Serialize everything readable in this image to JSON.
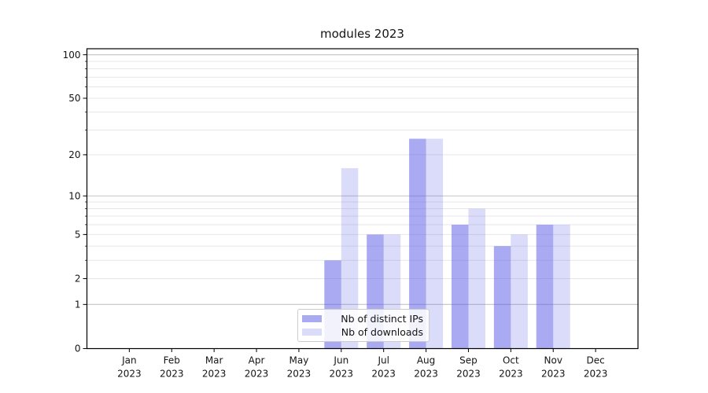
{
  "title": "modules 2023",
  "colors": {
    "bar_base": "#5c5ce6",
    "axis": "#000000",
    "grid_major": "#c3c3c3",
    "grid_minor": "#e7e7e7",
    "text": "#141414",
    "legend_border": "#cccccc"
  },
  "chart_data": {
    "type": "bar",
    "title": "modules 2023",
    "categories": [
      "Jan 2023",
      "Feb 2023",
      "Mar 2023",
      "Apr 2023",
      "May 2023",
      "Jun 2023",
      "Jul 2023",
      "Aug 2023",
      "Sep 2023",
      "Oct 2023",
      "Nov 2023",
      "Dec 2023"
    ],
    "month_labels": [
      "Jan",
      "Feb",
      "Mar",
      "Apr",
      "May",
      "Jun",
      "Jul",
      "Aug",
      "Sep",
      "Oct",
      "Nov",
      "Dec"
    ],
    "year_label": "2023",
    "series": [
      {
        "name": "Nb of distinct IPs",
        "fill_opacity": 0.52,
        "values": [
          0,
          0,
          0,
          0,
          0,
          3,
          5,
          26,
          6,
          4,
          6,
          0
        ]
      },
      {
        "name": "Nb of downloads",
        "fill_opacity": 0.22,
        "values": [
          0,
          0,
          0,
          0,
          0,
          16,
          5,
          26,
          8,
          5,
          6,
          0
        ]
      }
    ],
    "yscale": "log10(1+x)",
    "ylim": [
      0,
      110
    ],
    "ytick_labels": [
      0,
      1,
      2,
      5,
      10,
      20,
      50,
      100
    ],
    "grid_major_at": [
      1,
      10,
      100
    ],
    "grid_minor_at": [
      2,
      3,
      4,
      5,
      6,
      7,
      8,
      9,
      20,
      30,
      40,
      50,
      60,
      70,
      80,
      90
    ],
    "xlabel": "",
    "ylabel": "",
    "legend_position": "lower-center",
    "legend_entries": [
      "Nb of distinct IPs",
      "Nb of downloads"
    ]
  }
}
